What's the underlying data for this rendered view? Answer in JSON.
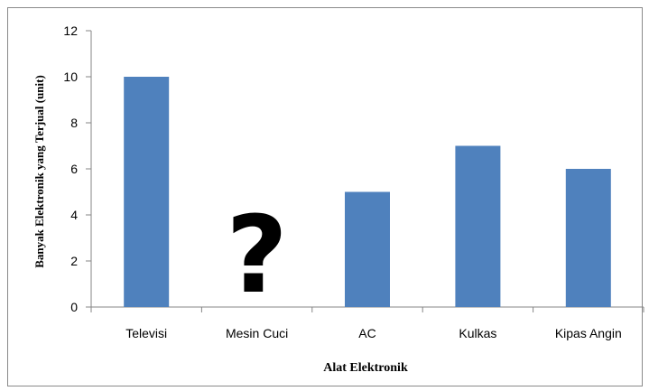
{
  "chart_data": {
    "type": "bar",
    "title": "",
    "xlabel": "Alat Elektronik",
    "ylabel": "Banyak Elektronik yang Terjual (unit)",
    "categories": [
      "Televisi",
      "Mesin Cuci",
      "AC",
      "Kulkas",
      "Kipas Angin"
    ],
    "values": [
      10,
      null,
      5,
      7,
      6
    ],
    "unknown_marker": "?",
    "unknown_category": "Mesin Cuci",
    "ylim": [
      0,
      12
    ],
    "yticks": [
      0,
      2,
      4,
      6,
      8,
      10,
      12
    ],
    "grid": false,
    "legend": "none",
    "bar_color": "#4F81BD"
  }
}
